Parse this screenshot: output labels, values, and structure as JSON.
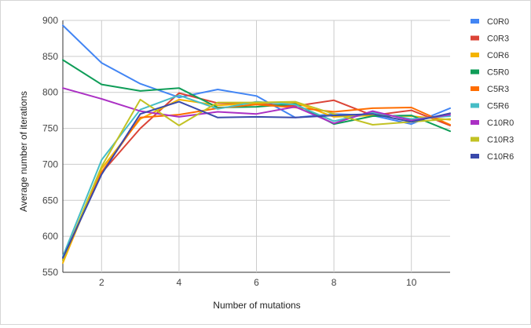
{
  "chart_data": {
    "type": "line",
    "title": "",
    "xlabel": "Number of mutations",
    "ylabel": "Average number of iterations",
    "xlim": [
      1,
      11
    ],
    "ylim": [
      550,
      900
    ],
    "xticks": [
      2,
      4,
      6,
      8,
      10
    ],
    "yticks": [
      550,
      600,
      650,
      700,
      750,
      800,
      850,
      900
    ],
    "grid": true,
    "legend_position": "right",
    "x": [
      1,
      2,
      3,
      4,
      5,
      6,
      7,
      8,
      9,
      10,
      11
    ],
    "series": [
      {
        "name": "C0R0",
        "color": "#4285f4",
        "values": [
          893,
          841,
          812,
          793,
          804,
          795,
          765,
          770,
          768,
          756,
          778
        ]
      },
      {
        "name": "C0R3",
        "color": "#db4437",
        "values": [
          570,
          688,
          750,
          799,
          785,
          784,
          781,
          789,
          768,
          775,
          754
        ]
      },
      {
        "name": "C0R6",
        "color": "#f4b400",
        "values": [
          563,
          694,
          763,
          790,
          782,
          785,
          786,
          766,
          768,
          767,
          762
        ]
      },
      {
        "name": "C5R0",
        "color": "#0f9d58",
        "values": [
          845,
          811,
          802,
          806,
          779,
          780,
          784,
          756,
          767,
          768,
          746
        ]
      },
      {
        "name": "C5R3",
        "color": "#ff6d00",
        "values": [
          568,
          689,
          765,
          769,
          778,
          783,
          779,
          773,
          778,
          779,
          755
        ]
      },
      {
        "name": "C5R6",
        "color": "#46bdc6",
        "values": [
          572,
          706,
          776,
          796,
          777,
          787,
          783,
          760,
          772,
          763,
          767
        ]
      },
      {
        "name": "C10R0",
        "color": "#ab30c4",
        "values": [
          806,
          791,
          774,
          766,
          773,
          770,
          780,
          757,
          774,
          761,
          769
        ]
      },
      {
        "name": "C10R3",
        "color": "#c2c224",
        "values": [
          567,
          697,
          790,
          754,
          786,
          786,
          787,
          770,
          755,
          759,
          763
        ]
      },
      {
        "name": "C10R6",
        "color": "#3949ab",
        "values": [
          570,
          686,
          770,
          787,
          765,
          766,
          765,
          768,
          770,
          759,
          771
        ]
      }
    ]
  }
}
